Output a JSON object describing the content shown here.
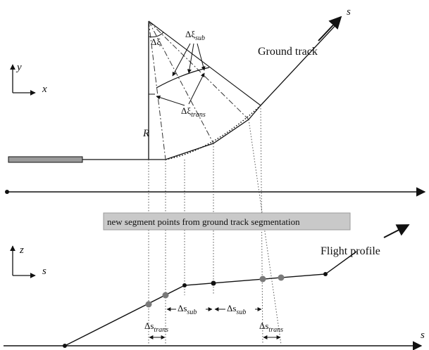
{
  "colors": {
    "line": "#111111",
    "dotted": "#555555",
    "dashdot": "#333333",
    "banner_fill": "#c9c9c9",
    "point_grey": "#7a7a7a",
    "runway_fill": "#9a9a9a"
  },
  "labels": {
    "s_top": "s",
    "ground_track": "Ground track",
    "y_axis": "y",
    "x_axis": "x",
    "delta_xi": "Δξ",
    "delta_xi_sub_base": "Δξ",
    "delta_xi_sub_sub": "sub",
    "delta_xi_trans_base": "Δξ",
    "delta_xi_trans_sub": "trans",
    "radius": "R",
    "banner": "new segment points from ground track segmentation",
    "z_axis": "z",
    "s_axis_lower": "s",
    "flight_profile": "Flight profile",
    "delta_s_sub_base": "Δs",
    "delta_s_sub_sub": "sub",
    "delta_s_trans_base": "Δs",
    "delta_s_trans_sub": "trans",
    "s_bottom": "s"
  },
  "icons": {
    "runway": "runway-bar-icon",
    "axis_arrow": "arrow-head-icon"
  }
}
